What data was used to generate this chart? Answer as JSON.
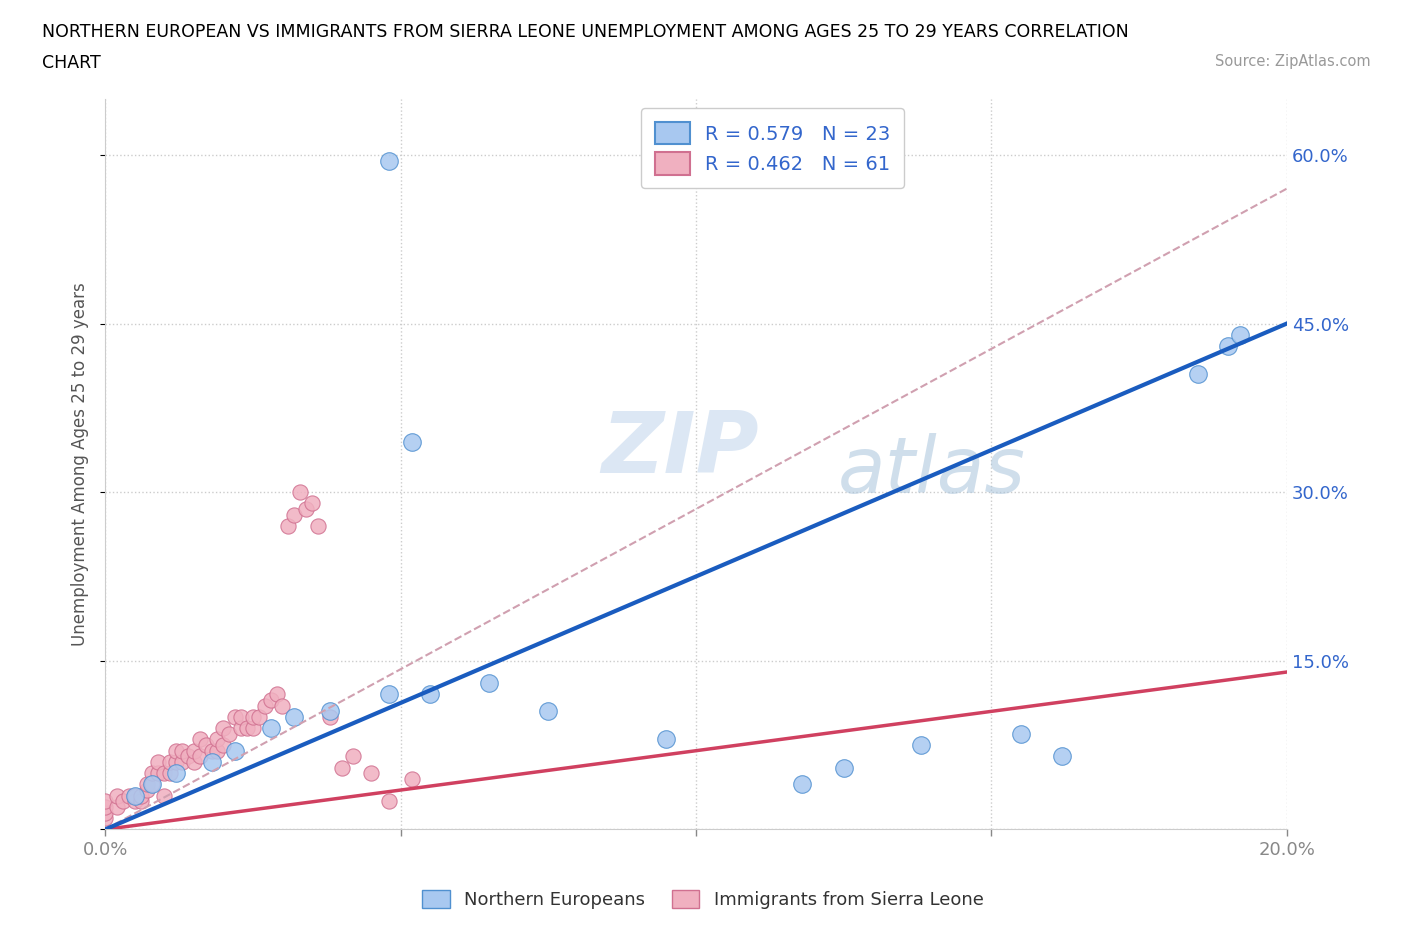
{
  "title_line1": "NORTHERN EUROPEAN VS IMMIGRANTS FROM SIERRA LEONE UNEMPLOYMENT AMONG AGES 25 TO 29 YEARS CORRELATION",
  "title_line2": "CHART",
  "source_text": "Source: ZipAtlas.com",
  "ylabel": "Unemployment Among Ages 25 to 29 years",
  "xlim": [
    0.0,
    0.2
  ],
  "ylim": [
    0.0,
    0.65
  ],
  "x_ticks": [
    0.0,
    0.05,
    0.1,
    0.15,
    0.2
  ],
  "y_ticks": [
    0.0,
    0.15,
    0.3,
    0.45,
    0.6
  ],
  "y_tick_labels_right": [
    "",
    "15.0%",
    "30.0%",
    "45.0%",
    "60.0%"
  ],
  "blue_fill": "#a8c8f0",
  "blue_edge": "#5090d0",
  "pink_fill": "#f0b0c0",
  "pink_edge": "#d07090",
  "blue_line_color": "#1a5cbf",
  "pink_line_color": "#d04060",
  "dash_line_color": "#d0a0b0",
  "R_blue": 0.579,
  "N_blue": 23,
  "R_pink": 0.462,
  "N_pink": 61,
  "legend_label_blue": "Northern Europeans",
  "legend_label_pink": "Immigrants from Sierra Leone",
  "watermark_zip": "ZIP",
  "watermark_atlas": "atlas",
  "blue_scatter_x": [
    0.048,
    0.005,
    0.008,
    0.012,
    0.018,
    0.022,
    0.028,
    0.032,
    0.038,
    0.048,
    0.055,
    0.065,
    0.075,
    0.095,
    0.118,
    0.125,
    0.138,
    0.155,
    0.162,
    0.185,
    0.19,
    0.192,
    0.052
  ],
  "blue_scatter_y": [
    0.595,
    0.03,
    0.04,
    0.05,
    0.06,
    0.07,
    0.09,
    0.1,
    0.105,
    0.12,
    0.12,
    0.13,
    0.105,
    0.08,
    0.04,
    0.055,
    0.075,
    0.085,
    0.065,
    0.405,
    0.43,
    0.44,
    0.345
  ],
  "pink_scatter_x": [
    0.0,
    0.0,
    0.0,
    0.0,
    0.002,
    0.002,
    0.003,
    0.004,
    0.005,
    0.005,
    0.006,
    0.006,
    0.007,
    0.007,
    0.008,
    0.008,
    0.009,
    0.009,
    0.01,
    0.01,
    0.011,
    0.011,
    0.012,
    0.012,
    0.013,
    0.013,
    0.014,
    0.015,
    0.015,
    0.016,
    0.016,
    0.017,
    0.018,
    0.019,
    0.019,
    0.02,
    0.02,
    0.021,
    0.022,
    0.023,
    0.023,
    0.024,
    0.025,
    0.025,
    0.026,
    0.027,
    0.028,
    0.029,
    0.03,
    0.031,
    0.032,
    0.033,
    0.034,
    0.035,
    0.036,
    0.038,
    0.04,
    0.042,
    0.045,
    0.048,
    0.052
  ],
  "pink_scatter_y": [
    0.01,
    0.015,
    0.02,
    0.025,
    0.02,
    0.03,
    0.025,
    0.03,
    0.025,
    0.03,
    0.025,
    0.03,
    0.035,
    0.04,
    0.04,
    0.05,
    0.05,
    0.06,
    0.03,
    0.05,
    0.05,
    0.06,
    0.06,
    0.07,
    0.06,
    0.07,
    0.065,
    0.06,
    0.07,
    0.065,
    0.08,
    0.075,
    0.07,
    0.07,
    0.08,
    0.075,
    0.09,
    0.085,
    0.1,
    0.09,
    0.1,
    0.09,
    0.09,
    0.1,
    0.1,
    0.11,
    0.115,
    0.12,
    0.11,
    0.27,
    0.28,
    0.3,
    0.285,
    0.29,
    0.27,
    0.1,
    0.055,
    0.065,
    0.05,
    0.025,
    0.045
  ],
  "blue_trend_x": [
    0.0,
    0.2
  ],
  "blue_trend_y": [
    0.0,
    0.45
  ],
  "pink_trend_x": [
    0.0,
    0.2
  ],
  "pink_trend_y": [
    0.0,
    0.14
  ],
  "dash_trend_x": [
    0.0,
    0.2
  ],
  "dash_trend_y": [
    0.0,
    0.57
  ]
}
